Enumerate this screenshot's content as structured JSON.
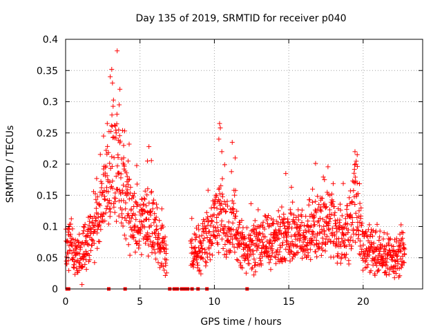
{
  "chart_data": {
    "type": "scatter",
    "title": "Day 135 of 2019, SRMTID for receiver p040",
    "xlabel": "GPS time / hours",
    "ylabel": "SRMTID / TECUs",
    "xlim": [
      0,
      24
    ],
    "ylim": [
      0,
      0.4
    ],
    "grid": true,
    "marker": "+",
    "color": "#ff0000",
    "x_ticks": [
      {
        "value": 0,
        "label": "0"
      },
      {
        "value": 5,
        "label": "5"
      },
      {
        "value": 10,
        "label": "10"
      },
      {
        "value": 15,
        "label": "15"
      },
      {
        "value": 20,
        "label": "20"
      }
    ],
    "y_ticks": [
      {
        "value": 0,
        "label": "0"
      },
      {
        "value": 0.05,
        "label": "0.05"
      },
      {
        "value": 0.1,
        "label": "0.1"
      },
      {
        "value": 0.15,
        "label": "0.15"
      },
      {
        "value": 0.2,
        "label": "0.2"
      },
      {
        "value": 0.25,
        "label": "0.25"
      },
      {
        "value": 0.3,
        "label": "0.3"
      },
      {
        "value": 0.35,
        "label": "0.35"
      },
      {
        "value": 0.4,
        "label": "0.4"
      }
    ],
    "envelope": [
      {
        "x": 0.0,
        "y": 0.05
      },
      {
        "x": 0.3,
        "y": 0.08
      },
      {
        "x": 0.7,
        "y": 0.05
      },
      {
        "x": 1.2,
        "y": 0.06
      },
      {
        "x": 1.8,
        "y": 0.09
      },
      {
        "x": 2.3,
        "y": 0.11
      },
      {
        "x": 2.7,
        "y": 0.15
      },
      {
        "x": 3.2,
        "y": 0.22
      },
      {
        "x": 3.6,
        "y": 0.17
      },
      {
        "x": 4.0,
        "y": 0.14
      },
      {
        "x": 4.5,
        "y": 0.1
      },
      {
        "x": 5.0,
        "y": 0.1
      },
      {
        "x": 5.5,
        "y": 0.12
      },
      {
        "x": 6.0,
        "y": 0.09
      },
      {
        "x": 6.4,
        "y": 0.07
      },
      {
        "x": 6.7,
        "y": 0.05
      },
      {
        "x": 8.5,
        "y": 0.06
      },
      {
        "x": 9.2,
        "y": 0.07
      },
      {
        "x": 9.8,
        "y": 0.09
      },
      {
        "x": 10.3,
        "y": 0.12
      },
      {
        "x": 10.8,
        "y": 0.09
      },
      {
        "x": 11.3,
        "y": 0.1
      },
      {
        "x": 12.0,
        "y": 0.06
      },
      {
        "x": 13.0,
        "y": 0.07
      },
      {
        "x": 14.0,
        "y": 0.08
      },
      {
        "x": 14.8,
        "y": 0.09
      },
      {
        "x": 15.5,
        "y": 0.08
      },
      {
        "x": 16.3,
        "y": 0.09
      },
      {
        "x": 17.0,
        "y": 0.1
      },
      {
        "x": 17.5,
        "y": 0.11
      },
      {
        "x": 18.2,
        "y": 0.09
      },
      {
        "x": 19.0,
        "y": 0.09
      },
      {
        "x": 19.5,
        "y": 0.14
      },
      {
        "x": 20.0,
        "y": 0.07
      },
      {
        "x": 21.0,
        "y": 0.06
      },
      {
        "x": 22.0,
        "y": 0.05
      },
      {
        "x": 22.8,
        "y": 0.06
      }
    ],
    "spikes": [
      {
        "x": 2.55,
        "y": 0.245
      },
      {
        "x": 2.8,
        "y": 0.265
      },
      {
        "x": 3.0,
        "y": 0.34
      },
      {
        "x": 3.1,
        "y": 0.352
      },
      {
        "x": 3.15,
        "y": 0.33
      },
      {
        "x": 3.45,
        "y": 0.28
      },
      {
        "x": 3.6,
        "y": 0.295
      },
      {
        "x": 3.65,
        "y": 0.32
      },
      {
        "x": 3.4,
        "y": 0.25
      },
      {
        "x": 3.9,
        "y": 0.23
      },
      {
        "x": 4.2,
        "y": 0.205
      },
      {
        "x": 5.6,
        "y": 0.228
      },
      {
        "x": 5.5,
        "y": 0.205
      },
      {
        "x": 10.35,
        "y": 0.265
      },
      {
        "x": 10.4,
        "y": 0.258
      },
      {
        "x": 10.3,
        "y": 0.24
      },
      {
        "x": 10.5,
        "y": 0.22
      },
      {
        "x": 11.2,
        "y": 0.235
      },
      {
        "x": 11.4,
        "y": 0.21
      },
      {
        "x": 14.8,
        "y": 0.185
      },
      {
        "x": 17.4,
        "y": 0.175
      },
      {
        "x": 19.45,
        "y": 0.22
      },
      {
        "x": 19.6,
        "y": 0.215
      },
      {
        "x": 19.5,
        "y": 0.2
      },
      {
        "x": 16.6,
        "y": 0.16
      },
      {
        "x": 0.2,
        "y": 0.1
      },
      {
        "x": 1.1,
        "y": 0.007
      }
    ],
    "gap_hours": [
      6.8,
      8.4
    ],
    "zero_markers": [
      0.1,
      0.2,
      2.9,
      4.0,
      7.0,
      7.3,
      7.5,
      7.8,
      8.0,
      8.2,
      8.5,
      8.9,
      9.5,
      12.2
    ]
  }
}
